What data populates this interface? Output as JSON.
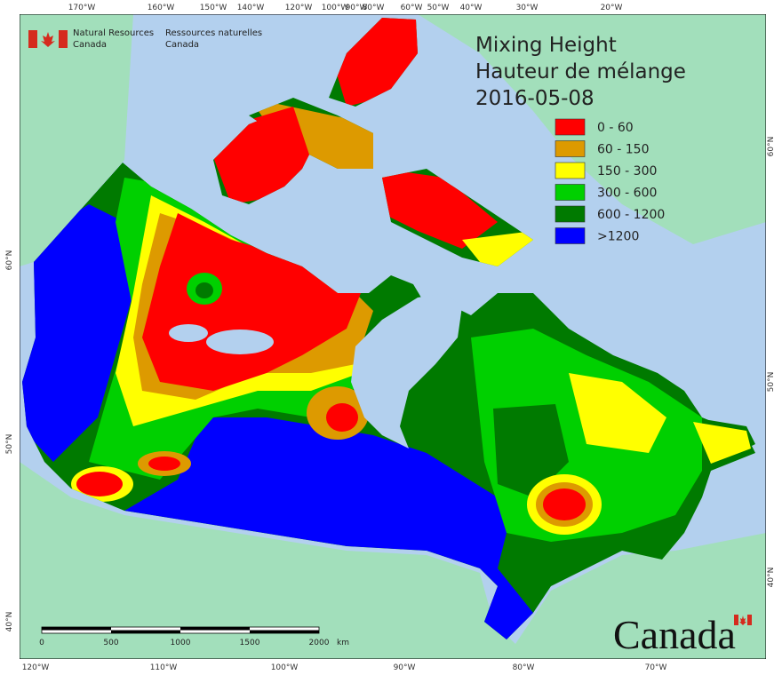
{
  "agency": {
    "en": [
      "Natural Resources",
      "Canada"
    ],
    "fr": [
      "Ressources naturelles",
      "Canada"
    ]
  },
  "title": [
    "Mixing Height",
    "Hauteur de mélange",
    "2016-05-08"
  ],
  "legend": [
    {
      "label": "0 - 60",
      "color": "#ff0000"
    },
    {
      "label": "60 - 150",
      "color": "#dd9a00"
    },
    {
      "label": "150 - 300",
      "color": "#ffff00"
    },
    {
      "label": "300 - 600",
      "color": "#00d000"
    },
    {
      "label": "600 - 1200",
      "color": "#007a00"
    },
    {
      "label": ">1200",
      "color": "#0000ff"
    }
  ],
  "longitude_labels_top": [
    "170°W",
    "160°W",
    "150°W",
    "140°W",
    "120°W",
    "100°W",
    "90°W",
    "80°W",
    "60°W",
    "50°W",
    "40°W",
    "30°W",
    "20°W"
  ],
  "longitude_labels_bottom": [
    "120°W",
    "110°W",
    "100°W",
    "90°W",
    "80°W",
    "70°W"
  ],
  "latitude_labels_left": [
    "60°N",
    "50°N",
    "40°N"
  ],
  "latitude_labels_right": [
    "60°N",
    "50°N",
    "40°N"
  ],
  "scale_bar": {
    "labels": [
      "0",
      "500",
      "1000",
      "1500",
      "2000"
    ],
    "unit": "km"
  },
  "wordmark": "Canada"
}
